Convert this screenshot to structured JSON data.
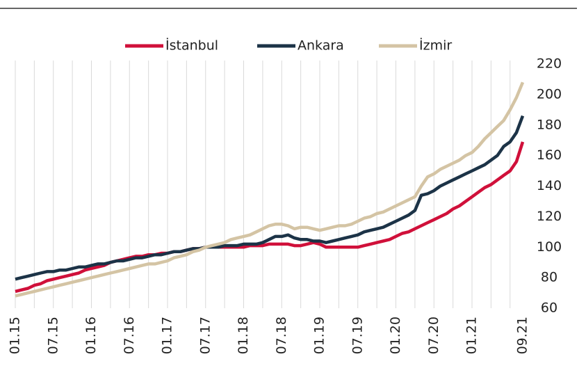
{
  "chart_data": {
    "type": "line",
    "categories": [
      "01.15",
      null,
      null,
      null,
      null,
      null,
      "07.15",
      null,
      null,
      null,
      null,
      null,
      "01.16",
      null,
      null,
      null,
      null,
      null,
      "07.16",
      null,
      null,
      null,
      null,
      null,
      "01.17",
      null,
      null,
      null,
      null,
      null,
      "07.17",
      null,
      null,
      null,
      null,
      null,
      "01.18",
      null,
      null,
      null,
      null,
      null,
      "07.18",
      null,
      null,
      null,
      null,
      null,
      "01.19",
      null,
      null,
      null,
      null,
      null,
      "07.19",
      null,
      null,
      null,
      null,
      null,
      "01.20",
      null,
      null,
      null,
      null,
      null,
      "07.20",
      null,
      null,
      null,
      null,
      null,
      "01.21",
      null,
      null,
      null,
      null,
      null,
      null,
      null,
      "09.21"
    ],
    "series": [
      {
        "name": "İstanbul",
        "color": "#d0103a",
        "values": [
          71,
          72,
          73,
          75,
          76,
          78,
          79,
          80,
          81,
          82,
          83,
          85,
          86,
          87,
          88,
          90,
          91,
          92,
          93,
          94,
          94,
          95,
          95,
          96,
          96,
          97,
          97,
          98,
          99,
          99,
          100,
          100,
          100,
          100,
          100,
          100,
          100,
          101,
          101,
          101,
          102,
          102,
          102,
          102,
          101,
          101,
          102,
          103,
          102,
          100,
          100,
          100,
          100,
          100,
          100,
          101,
          102,
          103,
          104,
          105,
          107,
          109,
          110,
          112,
          114,
          116,
          118,
          120,
          122,
          125,
          127,
          130,
          133,
          136,
          139,
          141,
          144,
          147,
          150,
          156,
          169
        ]
      },
      {
        "name": "Ankara",
        "color": "#1c3347",
        "values": [
          79,
          80,
          81,
          82,
          83,
          84,
          84,
          85,
          85,
          86,
          87,
          87,
          88,
          89,
          89,
          90,
          91,
          91,
          92,
          93,
          93,
          94,
          95,
          95,
          96,
          97,
          97,
          98,
          99,
          99,
          100,
          100,
          100,
          101,
          101,
          101,
          102,
          102,
          102,
          103,
          105,
          107,
          107,
          108,
          106,
          105,
          105,
          104,
          104,
          103,
          104,
          105,
          106,
          107,
          108,
          110,
          111,
          112,
          113,
          115,
          117,
          119,
          121,
          124,
          134,
          135,
          137,
          140,
          142,
          144,
          146,
          148,
          150,
          152,
          154,
          157,
          160,
          166,
          169,
          175,
          186
        ]
      },
      {
        "name": "İzmir",
        "color": "#d4c4a4",
        "values": [
          68,
          69,
          70,
          71,
          72,
          73,
          74,
          75,
          76,
          77,
          78,
          79,
          80,
          81,
          82,
          83,
          84,
          85,
          86,
          87,
          88,
          89,
          89,
          90,
          91,
          93,
          94,
          95,
          97,
          98,
          100,
          101,
          102,
          103,
          105,
          106,
          107,
          108,
          110,
          112,
          114,
          115,
          115,
          114,
          112,
          113,
          113,
          112,
          111,
          112,
          113,
          114,
          114,
          115,
          117,
          119,
          120,
          122,
          123,
          125,
          127,
          129,
          131,
          133,
          140,
          146,
          148,
          151,
          153,
          155,
          157,
          160,
          162,
          166,
          171,
          175,
          179,
          183,
          190,
          198,
          208
        ]
      }
    ],
    "ylim": [
      60,
      220
    ],
    "yticks": [
      60,
      80,
      100,
      120,
      140,
      160,
      180,
      200,
      220
    ],
    "grid": true,
    "legend": "top"
  }
}
